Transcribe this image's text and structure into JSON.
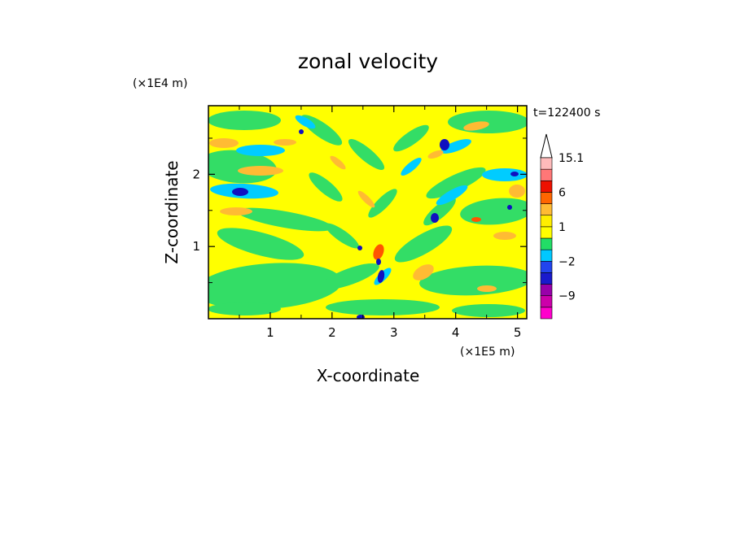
{
  "chart_data": {
    "type": "heatmap",
    "title": "zonal velocity",
    "xlabel": "X-coordinate",
    "ylabel": "Z-coordinate",
    "x_unit": "(×1E5 m)",
    "y_unit": "(×1E4 m)",
    "time_label": "t=122400 s",
    "x_ticks": [
      "1",
      "2",
      "3",
      "4",
      "5"
    ],
    "y_ticks": [
      "1",
      "2"
    ],
    "xlim": [
      0,
      5.15
    ],
    "ylim": [
      0,
      2.95
    ],
    "colorbar": {
      "tick_labels": [
        "15.1",
        "6",
        "1",
        "−2",
        "−9"
      ],
      "levels": [
        -15,
        -12,
        -9,
        -6,
        -3,
        -2,
        -1,
        0,
        1,
        2,
        3,
        6,
        9,
        12,
        15.1
      ],
      "colors": [
        "#ff00cc",
        "#cc00aa",
        "#9900aa",
        "#1a1acc",
        "#2244ee",
        "#00c8ff",
        "#22dd66",
        "#ffff00",
        "#ffee00",
        "#ffbb33",
        "#ff6600",
        "#ee1100",
        "#ff7777",
        "#ffbbbb"
      ]
    },
    "field_description_colors": {
      "background": "#ffff00",
      "weak_negative": "#33dd66",
      "moderate_negative": "#00ccff",
      "strong_negative": "#1010c0",
      "moderate_positive": "#ffbb33",
      "strong_positive": "#ff5500"
    }
  }
}
